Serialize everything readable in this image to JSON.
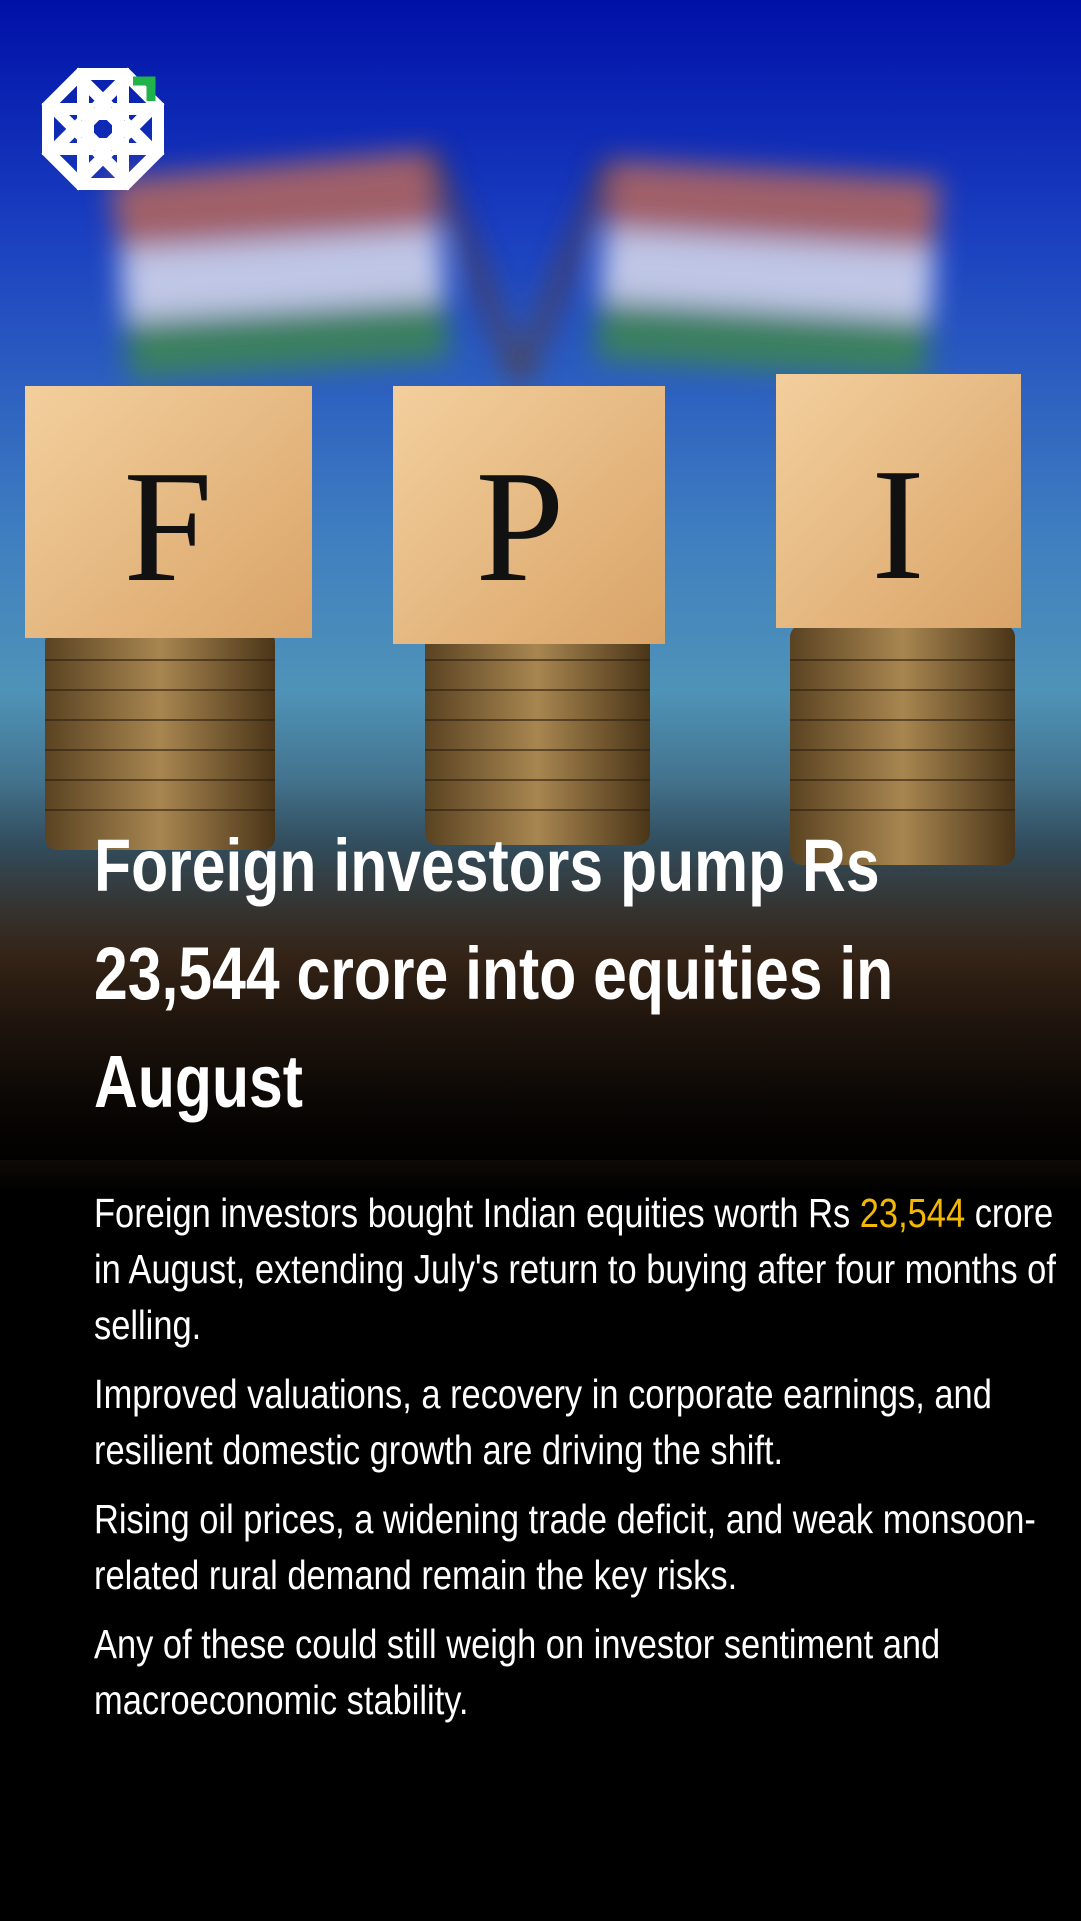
{
  "photo": {
    "blocks": [
      "F",
      "P",
      "I"
    ]
  },
  "headline": "Foreign investors pump Rs 23,544 crore into equities in August",
  "body": {
    "paragraph_1": {
      "before": "Foreign investors bought Indian equities worth Rs",
      "highlight": "23,544",
      "after": "crore in August, extending July's return to buying after four months of selling."
    },
    "paragraphs": [
      "Improved valuations, a recovery in corporate earnings, and resilient domestic growth are driving the shift.",
      "Rising oil prices, a widening trade deficit, and weak monsoon-related rural demand remain the key risks.",
      "Any of these could still weigh on investor sentiment and macroeconomic stability."
    ]
  }
}
